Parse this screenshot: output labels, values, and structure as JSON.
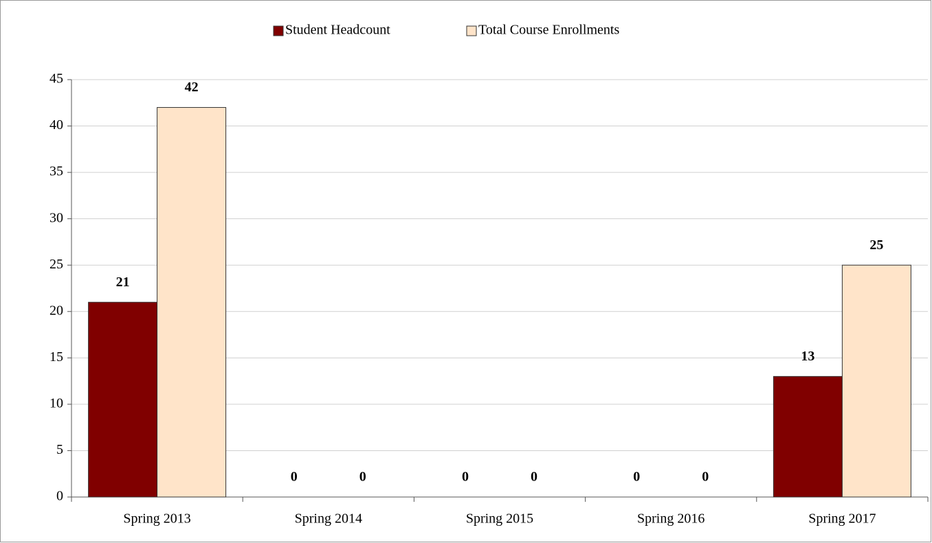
{
  "chart_data": {
    "type": "bar",
    "categories": [
      "Spring 2013",
      "Spring 2014",
      "Spring 2015",
      "Spring 2016",
      "Spring 2017"
    ],
    "series": [
      {
        "name": "Student Headcount",
        "color": "#800000",
        "values": [
          21,
          0,
          0,
          0,
          13
        ]
      },
      {
        "name": "Total Course Enrollments",
        "color": "#ffe4c9",
        "values": [
          42,
          0,
          0,
          0,
          25
        ]
      }
    ],
    "ylim": [
      0,
      45
    ],
    "yticks": [
      0,
      5,
      10,
      15,
      20,
      25,
      30,
      35,
      40,
      45
    ],
    "grid": true,
    "legend": "top"
  }
}
